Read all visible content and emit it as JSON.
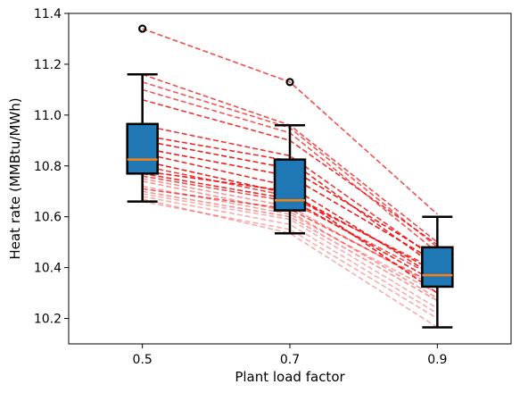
{
  "chart_data": {
    "type": "box",
    "title": "",
    "xlabel": "Plant load factor",
    "ylabel": "Heat rate (MMBtu/MWh)",
    "categories": [
      "0.5",
      "0.7",
      "0.9"
    ],
    "xlim": [
      0.4,
      1.0
    ],
    "ylim": [
      10.1,
      11.4
    ],
    "yticks": [
      10.2,
      10.4,
      10.6,
      10.8,
      11.0,
      11.2,
      11.4
    ],
    "grid": false,
    "boxes": [
      {
        "label": "0.5",
        "whisker_low": 10.66,
        "q1": 10.77,
        "median": 10.825,
        "q3": 10.965,
        "whisker_high": 11.16,
        "outliers": [
          11.34
        ]
      },
      {
        "label": "0.7",
        "whisker_low": 10.535,
        "q1": 10.625,
        "median": 10.665,
        "q3": 10.825,
        "whisker_high": 10.96,
        "outliers": [
          11.13
        ]
      },
      {
        "label": "0.9",
        "whisker_low": 10.165,
        "q1": 10.325,
        "median": 10.37,
        "q3": 10.48,
        "whisker_high": 10.6,
        "outliers": []
      }
    ],
    "lines": [
      {
        "values": [
          11.34,
          11.13,
          10.61
        ],
        "color": "#ee1111",
        "alpha": 0.75
      },
      {
        "values": [
          11.16,
          10.96,
          10.5
        ],
        "color": "#ee1111",
        "alpha": 0.75
      },
      {
        "values": [
          11.13,
          10.95,
          10.48
        ],
        "color": "#ee1111",
        "alpha": 0.7
      },
      {
        "values": [
          11.1,
          10.93,
          10.46
        ],
        "color": "#ee1111",
        "alpha": 0.7
      },
      {
        "values": [
          11.06,
          10.9,
          10.49
        ],
        "color": "#ee1111",
        "alpha": 0.85
      },
      {
        "values": [
          10.96,
          10.84,
          10.43
        ],
        "color": "#ee1111",
        "alpha": 0.85
      },
      {
        "values": [
          10.92,
          10.82,
          10.4
        ],
        "color": "#ee1111",
        "alpha": 0.9
      },
      {
        "values": [
          10.9,
          10.79,
          10.44
        ],
        "color": "#ee1111",
        "alpha": 0.95
      },
      {
        "values": [
          10.87,
          10.76,
          10.42
        ],
        "color": "#ee1111",
        "alpha": 0.95
      },
      {
        "values": [
          10.85,
          10.72,
          10.36
        ],
        "color": "#ee1111",
        "alpha": 0.9
      },
      {
        "values": [
          10.82,
          10.69,
          10.38
        ],
        "color": "#ee1111",
        "alpha": 0.95
      },
      {
        "values": [
          10.8,
          10.68,
          10.39
        ],
        "color": "#ee1111",
        "alpha": 0.8
      },
      {
        "values": [
          10.78,
          10.7,
          10.3
        ],
        "color": "#ee1111",
        "alpha": 0.95
      },
      {
        "values": [
          10.77,
          10.67,
          10.34
        ],
        "color": "#ee1111",
        "alpha": 0.9
      },
      {
        "values": [
          10.76,
          10.66,
          10.36
        ],
        "color": "#ee1111",
        "alpha": 0.75
      },
      {
        "values": [
          10.75,
          10.64,
          10.32
        ],
        "color": "#ee1111",
        "alpha": 0.45
      },
      {
        "values": [
          10.74,
          10.62,
          10.28
        ],
        "color": "#ee1111",
        "alpha": 0.45
      },
      {
        "values": [
          10.72,
          10.61,
          10.3
        ],
        "color": "#ee1111",
        "alpha": 0.4
      },
      {
        "values": [
          10.71,
          10.63,
          10.33
        ],
        "color": "#ee1111",
        "alpha": 0.7
      },
      {
        "values": [
          10.7,
          10.6,
          10.27
        ],
        "color": "#ee1111",
        "alpha": 0.45
      },
      {
        "values": [
          10.69,
          10.59,
          10.24
        ],
        "color": "#ee1111",
        "alpha": 0.35
      },
      {
        "values": [
          10.68,
          10.57,
          10.22
        ],
        "color": "#ee1111",
        "alpha": 0.35
      },
      {
        "values": [
          10.66,
          10.55,
          10.2
        ],
        "color": "#ee1111",
        "alpha": 0.35
      },
      {
        "values": [
          10.67,
          10.535,
          10.165
        ],
        "color": "#ee1111",
        "alpha": 0.35
      }
    ],
    "box_fill": "#1f77b4",
    "median_color": "#ff7f0e"
  }
}
